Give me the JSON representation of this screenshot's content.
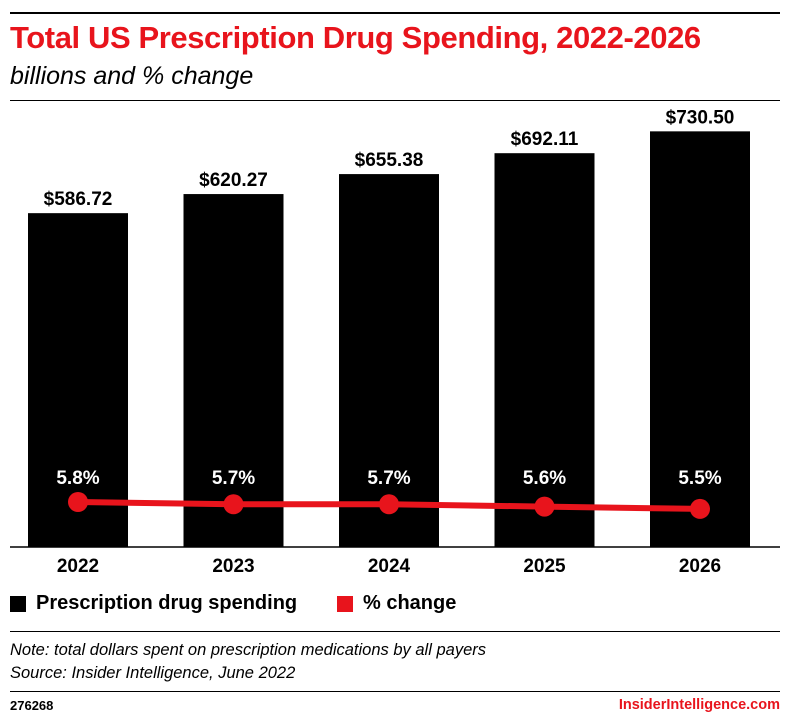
{
  "chart_data": {
    "type": "bar",
    "title": "Total US Prescription Drug Spending, 2022-2026",
    "subtitle": "billions and % change",
    "categories": [
      "2022",
      "2023",
      "2024",
      "2025",
      "2026"
    ],
    "series": [
      {
        "name": "Prescription drug spending",
        "type": "bar",
        "values": [
          586.72,
          620.27,
          655.38,
          692.11,
          730.5
        ],
        "labels": [
          "$586.72",
          "$620.27",
          "$655.38",
          "$692.11",
          "$730.50"
        ],
        "color": "#000000"
      },
      {
        "name": "% change",
        "type": "line",
        "values": [
          5.8,
          5.7,
          5.7,
          5.6,
          5.5
        ],
        "labels": [
          "5.8%",
          "5.7%",
          "5.7%",
          "5.6%",
          "5.5%"
        ],
        "color": "#e8141c"
      }
    ],
    "legend_position": "bottom-left",
    "grid": false
  },
  "footer": {
    "note": "Note: total dollars spent on prescription medications by all payers",
    "source": "Source: Insider Intelligence, June 2022",
    "chart_id": "276268",
    "brand": "InsiderIntelligence.com"
  }
}
